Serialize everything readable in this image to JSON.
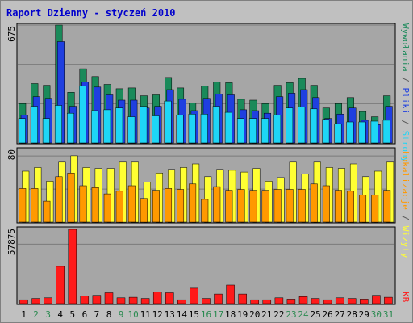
{
  "colors": {
    "background": "#c0c0c0",
    "panel": "#a6a6a6",
    "hits": "#1a8a5a",
    "files": "#1f3fe0",
    "pages": "#1ed6f6",
    "visits": "#ffff33",
    "sites": "#ff9900",
    "kbytes": "#ff1a1a",
    "title": "#0000cc",
    "weekday_label": "#000000",
    "weekend_label": "#2a8a50"
  },
  "chart_data": [
    {
      "type": "bar",
      "title": "Raport Dzienny -  styczeń 2010",
      "panel": "hits_files_pages",
      "ymax_label": "675",
      "ylim": [
        0,
        675
      ],
      "categories": [
        "1",
        "2",
        "3",
        "4",
        "5",
        "6",
        "7",
        "8",
        "9",
        "10",
        "11",
        "12",
        "13",
        "14",
        "15",
        "16",
        "17",
        "18",
        "19",
        "20",
        "21",
        "22",
        "23",
        "24",
        "25",
        "26",
        "27",
        "28",
        "29",
        "30",
        "31"
      ],
      "series": [
        {
          "name": "Wywołania",
          "values": [
            225,
            340,
            330,
            675,
            290,
            425,
            380,
            335,
            310,
            315,
            270,
            275,
            375,
            315,
            230,
            325,
            350,
            345,
            250,
            245,
            225,
            330,
            345,
            370,
            330,
            200,
            225,
            260,
            180,
            150,
            270
          ]
        },
        {
          "name": "Pliki",
          "values": [
            160,
            265,
            255,
            580,
            210,
            350,
            320,
            275,
            245,
            245,
            200,
            210,
            305,
            250,
            185,
            255,
            280,
            275,
            190,
            185,
            170,
            265,
            285,
            305,
            260,
            140,
            165,
            200,
            130,
            105,
            210
          ]
        },
        {
          "name": "Strony",
          "values": [
            140,
            210,
            140,
            215,
            170,
            325,
            185,
            190,
            200,
            150,
            210,
            155,
            240,
            160,
            165,
            165,
            210,
            175,
            140,
            140,
            140,
            160,
            200,
            205,
            195,
            135,
            110,
            120,
            120,
            125,
            130
          ]
        }
      ]
    },
    {
      "type": "bar",
      "panel": "visits_sites",
      "ymax_label": "80",
      "ylim": [
        0,
        80
      ],
      "series": [
        {
          "name": "Wizyty",
          "values": [
            56,
            60,
            45,
            66,
            73,
            60,
            59,
            59,
            66,
            66,
            44,
            54,
            58,
            60,
            64,
            50,
            58,
            57,
            55,
            59,
            45,
            49,
            66,
            53,
            66,
            60,
            59,
            64,
            50,
            56,
            66
          ]
        },
        {
          "name": "Lokalizacje",
          "values": [
            37,
            37,
            23,
            50,
            54,
            40,
            38,
            31,
            34,
            40,
            26,
            35,
            37,
            36,
            42,
            25,
            39,
            35,
            36,
            35,
            35,
            36,
            36,
            36,
            42,
            40,
            35,
            34,
            30,
            30,
            35
          ]
        }
      ]
    },
    {
      "type": "bar",
      "panel": "kbytes",
      "ymax_label": "57875",
      "ylim": [
        0,
        57875
      ],
      "series": [
        {
          "name": "KB",
          "values": [
            3000,
            4000,
            4500,
            29000,
            57875,
            6000,
            6500,
            8500,
            4500,
            5000,
            4000,
            9000,
            8500,
            3000,
            12000,
            4000,
            7500,
            14500,
            7500,
            3000,
            3000,
            4500,
            3500,
            5500,
            4000,
            3000,
            4500,
            4000,
            3500,
            6500,
            5000
          ]
        }
      ]
    }
  ],
  "right_legend": {
    "hits": "Wywołania",
    "sep1": " / ",
    "files": "Pliki",
    "sep2": " / ",
    "pages": "Strony",
    "sites": "Lokalizacje",
    "sep3": " / ",
    "visits": "Wizyty",
    "kbytes": "KB"
  },
  "weekend_days": [
    2,
    3,
    9,
    10,
    16,
    17,
    23,
    24,
    30,
    31
  ]
}
